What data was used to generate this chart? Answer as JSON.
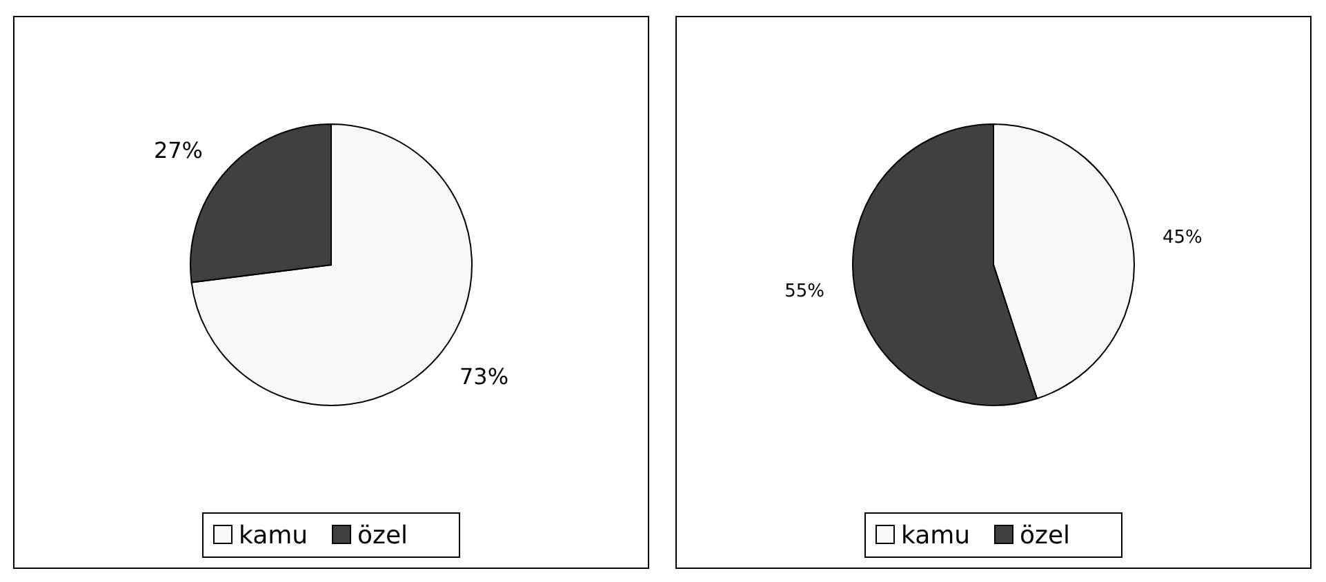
{
  "chart_data": [
    {
      "type": "pie",
      "categories": [
        "kamu",
        "özel"
      ],
      "values": [
        73,
        27
      ],
      "colors": [
        "#f8f8f8",
        "#404040"
      ],
      "value_labels": [
        "73%",
        "27%"
      ],
      "legend": "bottom"
    },
    {
      "type": "pie",
      "categories": [
        "kamu",
        "özel"
      ],
      "values": [
        45,
        55
      ],
      "colors": [
        "#f8f8f8",
        "#404040"
      ],
      "value_labels": [
        "45%",
        "55%"
      ],
      "legend": "bottom"
    }
  ]
}
